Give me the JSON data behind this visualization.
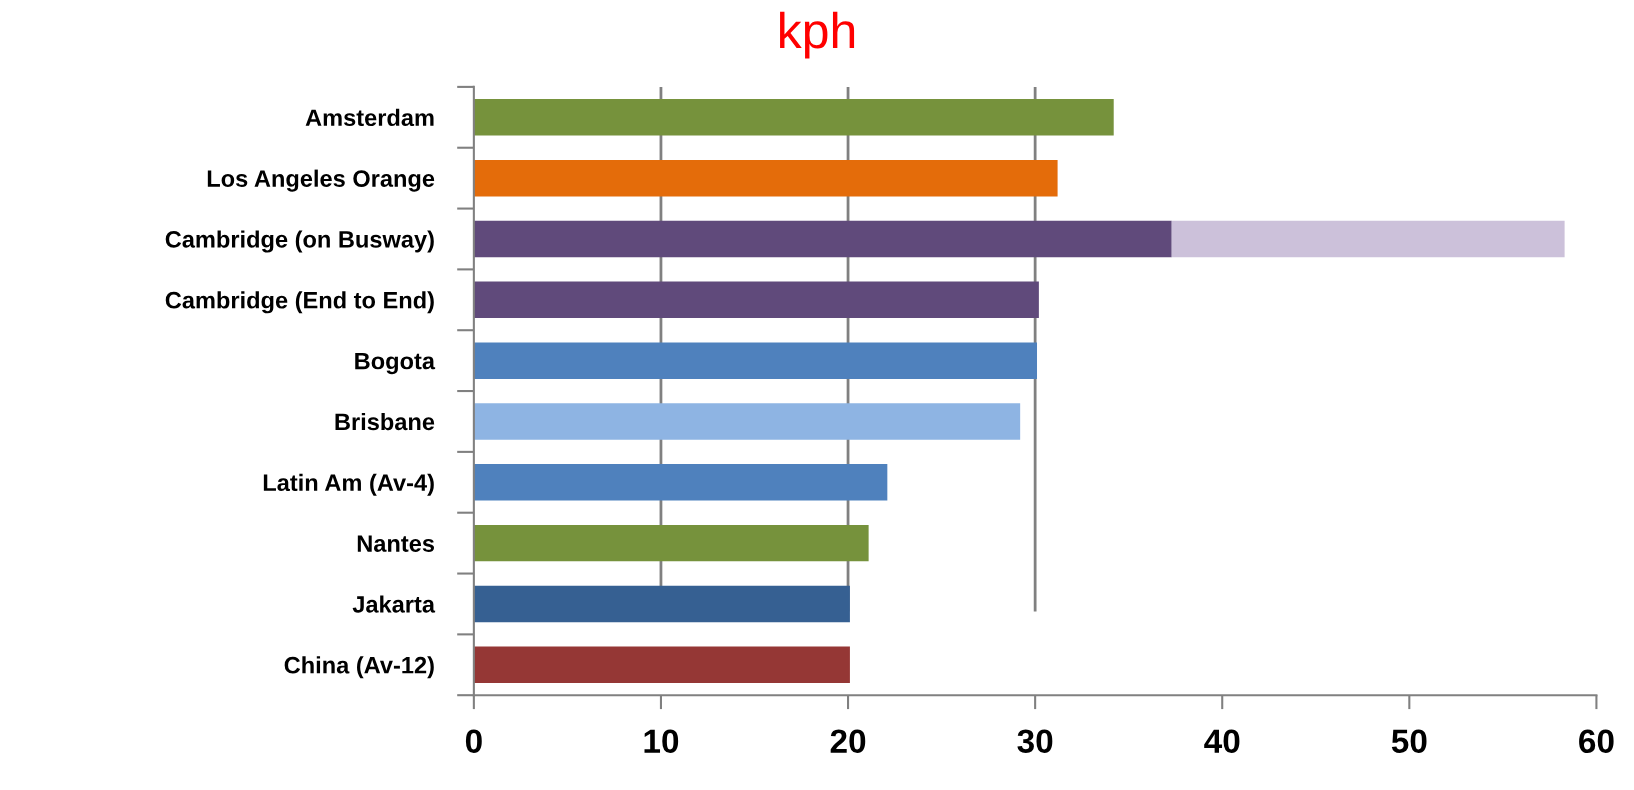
{
  "chart_data": {
    "type": "bar",
    "title": "kph",
    "orientation": "horizontal",
    "stacked": true,
    "categories": [
      "Amsterdam",
      "Los Angeles Orange",
      "Cambridge (on Busway)",
      "Cambridge (End to End)",
      "Bogota",
      "Brisbane",
      "Latin Am (Av-4)",
      "Nantes",
      "Jakarta",
      "China (Av-12)"
    ],
    "series": [
      {
        "colors": [
          "#76923c",
          "#e46c0a",
          "#604a7b",
          "#604a7b",
          "#4f81bd",
          "#8eb4e3",
          "#4f81bd",
          "#76923c",
          "#366092",
          "#953735"
        ],
        "values": [
          34.2,
          31.2,
          37.3,
          30.2,
          30.1,
          29.2,
          22.1,
          21.1,
          20.1,
          20.1
        ]
      },
      {
        "color": "#ccc1da",
        "values": [
          null,
          null,
          21.0,
          null,
          null,
          null,
          null,
          null,
          null,
          null
        ]
      }
    ],
    "xlim": [
      0,
      60
    ],
    "xticks": [
      0,
      10,
      20,
      30,
      40,
      50,
      60
    ],
    "ref_lines": [
      {
        "axis": "x",
        "value": 10,
        "color": "#808080"
      },
      {
        "axis": "x",
        "value": 20,
        "color": "#808080"
      },
      {
        "axis": "x",
        "value": 30,
        "color": "#808080"
      }
    ]
  }
}
